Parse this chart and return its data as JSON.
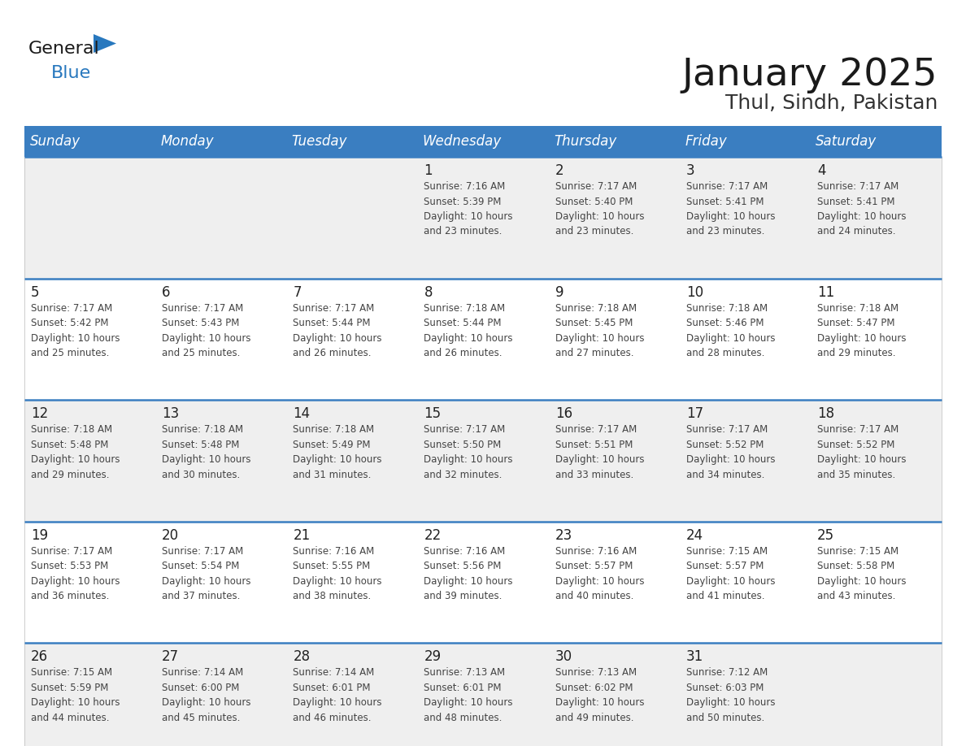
{
  "title": "January 2025",
  "subtitle": "Thul, Sindh, Pakistan",
  "header_bg": "#3a7ec1",
  "header_text": "#ffffff",
  "header_days": [
    "Sunday",
    "Monday",
    "Tuesday",
    "Wednesday",
    "Thursday",
    "Friday",
    "Saturday"
  ],
  "row_bg_light": "#efefef",
  "row_bg_white": "#ffffff",
  "separator_color": "#3a7ec1",
  "day_number_color": "#222222",
  "cell_text_color": "#444444",
  "title_color": "#1a1a1a",
  "subtitle_color": "#333333",
  "logo_general_color": "#1a1a1a",
  "logo_blue_color": "#2878be",
  "weeks": [
    {
      "bg": "#efefef",
      "days": [
        {
          "date": "",
          "info": ""
        },
        {
          "date": "",
          "info": ""
        },
        {
          "date": "",
          "info": ""
        },
        {
          "date": "1",
          "info": "Sunrise: 7:16 AM\nSunset: 5:39 PM\nDaylight: 10 hours\nand 23 minutes."
        },
        {
          "date": "2",
          "info": "Sunrise: 7:17 AM\nSunset: 5:40 PM\nDaylight: 10 hours\nand 23 minutes."
        },
        {
          "date": "3",
          "info": "Sunrise: 7:17 AM\nSunset: 5:41 PM\nDaylight: 10 hours\nand 23 minutes."
        },
        {
          "date": "4",
          "info": "Sunrise: 7:17 AM\nSunset: 5:41 PM\nDaylight: 10 hours\nand 24 minutes."
        }
      ]
    },
    {
      "bg": "#ffffff",
      "days": [
        {
          "date": "5",
          "info": "Sunrise: 7:17 AM\nSunset: 5:42 PM\nDaylight: 10 hours\nand 25 minutes."
        },
        {
          "date": "6",
          "info": "Sunrise: 7:17 AM\nSunset: 5:43 PM\nDaylight: 10 hours\nand 25 minutes."
        },
        {
          "date": "7",
          "info": "Sunrise: 7:17 AM\nSunset: 5:44 PM\nDaylight: 10 hours\nand 26 minutes."
        },
        {
          "date": "8",
          "info": "Sunrise: 7:18 AM\nSunset: 5:44 PM\nDaylight: 10 hours\nand 26 minutes."
        },
        {
          "date": "9",
          "info": "Sunrise: 7:18 AM\nSunset: 5:45 PM\nDaylight: 10 hours\nand 27 minutes."
        },
        {
          "date": "10",
          "info": "Sunrise: 7:18 AM\nSunset: 5:46 PM\nDaylight: 10 hours\nand 28 minutes."
        },
        {
          "date": "11",
          "info": "Sunrise: 7:18 AM\nSunset: 5:47 PM\nDaylight: 10 hours\nand 29 minutes."
        }
      ]
    },
    {
      "bg": "#efefef",
      "days": [
        {
          "date": "12",
          "info": "Sunrise: 7:18 AM\nSunset: 5:48 PM\nDaylight: 10 hours\nand 29 minutes."
        },
        {
          "date": "13",
          "info": "Sunrise: 7:18 AM\nSunset: 5:48 PM\nDaylight: 10 hours\nand 30 minutes."
        },
        {
          "date": "14",
          "info": "Sunrise: 7:18 AM\nSunset: 5:49 PM\nDaylight: 10 hours\nand 31 minutes."
        },
        {
          "date": "15",
          "info": "Sunrise: 7:17 AM\nSunset: 5:50 PM\nDaylight: 10 hours\nand 32 minutes."
        },
        {
          "date": "16",
          "info": "Sunrise: 7:17 AM\nSunset: 5:51 PM\nDaylight: 10 hours\nand 33 minutes."
        },
        {
          "date": "17",
          "info": "Sunrise: 7:17 AM\nSunset: 5:52 PM\nDaylight: 10 hours\nand 34 minutes."
        },
        {
          "date": "18",
          "info": "Sunrise: 7:17 AM\nSunset: 5:52 PM\nDaylight: 10 hours\nand 35 minutes."
        }
      ]
    },
    {
      "bg": "#ffffff",
      "days": [
        {
          "date": "19",
          "info": "Sunrise: 7:17 AM\nSunset: 5:53 PM\nDaylight: 10 hours\nand 36 minutes."
        },
        {
          "date": "20",
          "info": "Sunrise: 7:17 AM\nSunset: 5:54 PM\nDaylight: 10 hours\nand 37 minutes."
        },
        {
          "date": "21",
          "info": "Sunrise: 7:16 AM\nSunset: 5:55 PM\nDaylight: 10 hours\nand 38 minutes."
        },
        {
          "date": "22",
          "info": "Sunrise: 7:16 AM\nSunset: 5:56 PM\nDaylight: 10 hours\nand 39 minutes."
        },
        {
          "date": "23",
          "info": "Sunrise: 7:16 AM\nSunset: 5:57 PM\nDaylight: 10 hours\nand 40 minutes."
        },
        {
          "date": "24",
          "info": "Sunrise: 7:15 AM\nSunset: 5:57 PM\nDaylight: 10 hours\nand 41 minutes."
        },
        {
          "date": "25",
          "info": "Sunrise: 7:15 AM\nSunset: 5:58 PM\nDaylight: 10 hours\nand 43 minutes."
        }
      ]
    },
    {
      "bg": "#efefef",
      "days": [
        {
          "date": "26",
          "info": "Sunrise: 7:15 AM\nSunset: 5:59 PM\nDaylight: 10 hours\nand 44 minutes."
        },
        {
          "date": "27",
          "info": "Sunrise: 7:14 AM\nSunset: 6:00 PM\nDaylight: 10 hours\nand 45 minutes."
        },
        {
          "date": "28",
          "info": "Sunrise: 7:14 AM\nSunset: 6:01 PM\nDaylight: 10 hours\nand 46 minutes."
        },
        {
          "date": "29",
          "info": "Sunrise: 7:13 AM\nSunset: 6:01 PM\nDaylight: 10 hours\nand 48 minutes."
        },
        {
          "date": "30",
          "info": "Sunrise: 7:13 AM\nSunset: 6:02 PM\nDaylight: 10 hours\nand 49 minutes."
        },
        {
          "date": "31",
          "info": "Sunrise: 7:12 AM\nSunset: 6:03 PM\nDaylight: 10 hours\nand 50 minutes."
        },
        {
          "date": "",
          "info": ""
        }
      ]
    }
  ]
}
